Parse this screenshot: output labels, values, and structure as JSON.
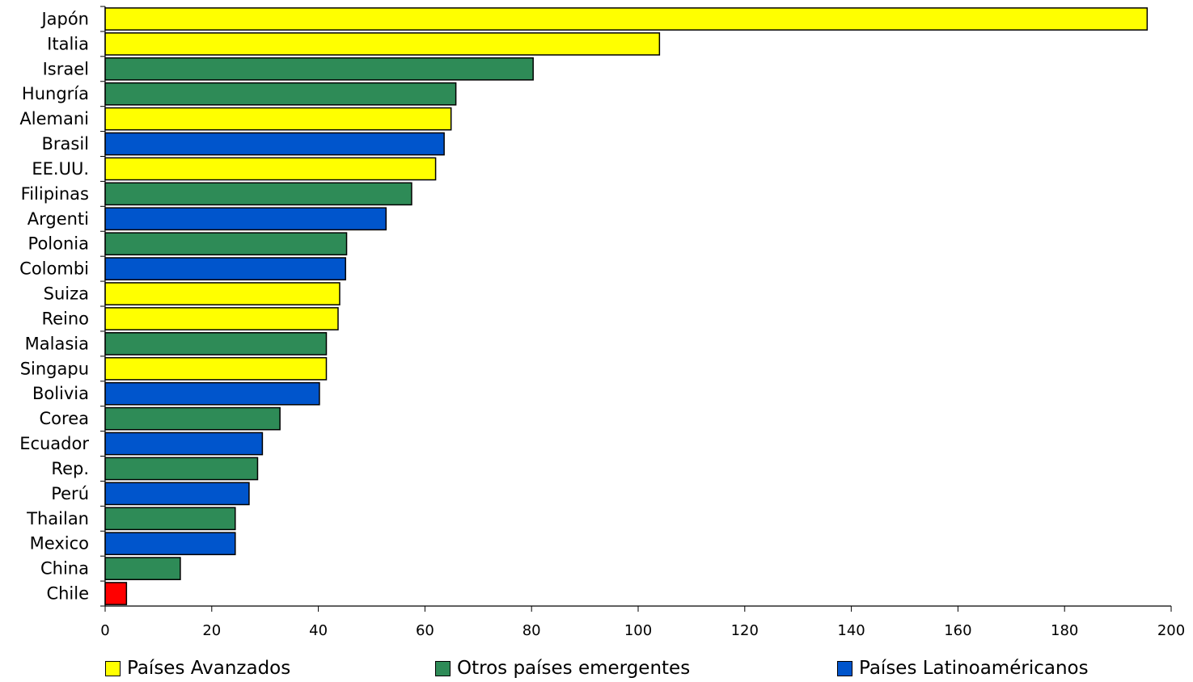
{
  "chart_data": {
    "type": "bar",
    "orientation": "horizontal",
    "categories": [
      "Japón",
      "Italia",
      "Israel",
      "Hungría",
      "Alemani",
      "Brasil",
      "EE.UU.",
      "Filipinas",
      "Argenti",
      "Polonia",
      "Colombi",
      "Suiza",
      "Reino",
      "Malasia",
      "Singapu",
      "Bolivia",
      "Corea",
      "Ecuador",
      "Rep.",
      "Perú",
      "Thailan",
      "Mexico",
      "China",
      "Chile"
    ],
    "values": [
      195.5,
      104,
      80.3,
      65.8,
      64.9,
      63.6,
      62,
      57.5,
      52.7,
      45.3,
      45.1,
      44,
      43.7,
      41.5,
      41.5,
      40.2,
      32.8,
      29.5,
      28.6,
      27,
      24.4,
      24.4,
      14.1,
      4
    ],
    "groups": [
      "avanzados",
      "avanzados",
      "emergentes",
      "emergentes",
      "avanzados",
      "latam",
      "avanzados",
      "emergentes",
      "latam",
      "emergentes",
      "latam",
      "avanzados",
      "avanzados",
      "emergentes",
      "avanzados",
      "latam",
      "emergentes",
      "latam",
      "emergentes",
      "latam",
      "emergentes",
      "latam",
      "emergentes",
      "chile"
    ],
    "xlim": [
      0,
      200
    ],
    "x_ticks": [
      "0",
      "20",
      "40",
      "60",
      "80",
      "100",
      "120",
      "140",
      "160",
      "180",
      "200"
    ],
    "grid": false,
    "legend_position": "bottom",
    "legend": [
      {
        "key": "avanzados",
        "label": "Países Avanzados",
        "color": "#FFFF00"
      },
      {
        "key": "emergentes",
        "label": "Otros países emergentes",
        "color": "#2E8B57"
      },
      {
        "key": "latam",
        "label": "Países Latinoaméricanos",
        "color": "#0055CC"
      }
    ],
    "colors": {
      "avanzados": "#FFFF00",
      "emergentes": "#2E8B57",
      "latam": "#0055CC",
      "chile": "#FF0000"
    }
  }
}
